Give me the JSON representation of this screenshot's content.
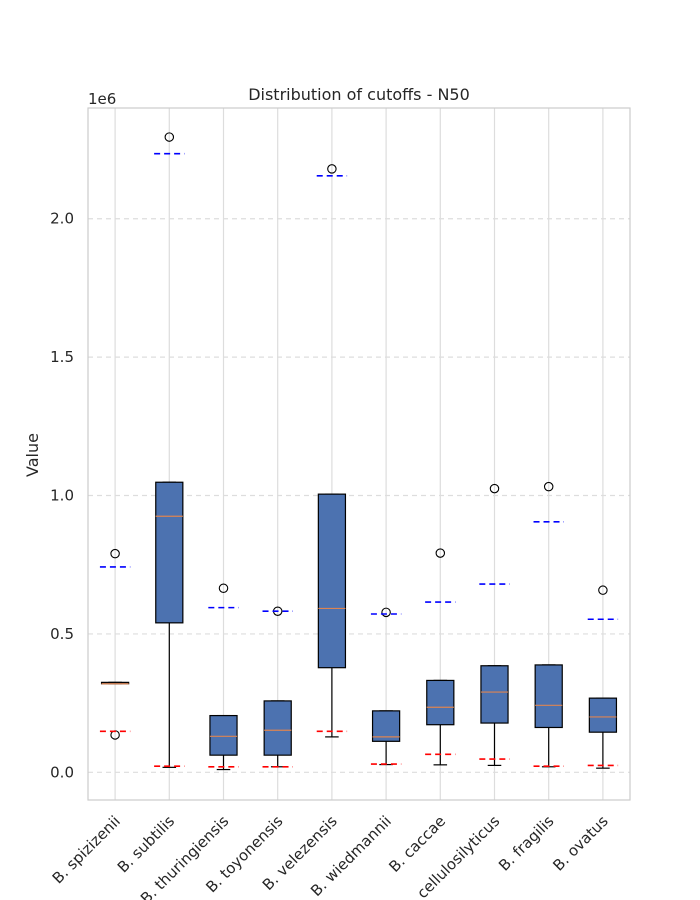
{
  "chart_data": {
    "type": "box",
    "title": "Distribution of cutoffs - N50",
    "xlabel": "",
    "ylabel": "Value",
    "y_offset_label": "1e6",
    "ylim": [
      -100000,
      2400000
    ],
    "yticks": [
      0,
      500000,
      1000000,
      1500000,
      2000000
    ],
    "ytick_labels": [
      "0.0",
      "0.5",
      "1.0",
      "1.5",
      "2.0"
    ],
    "grid": true,
    "categories": [
      "B. spizizenii",
      "B. subtilis",
      "B. thuringiensis",
      "B. toyonensis",
      "B. velezensis",
      "B. wiedmannii",
      "B. caccae",
      "B. cellulosilyticus",
      "B. fragilis",
      "B. ovatus"
    ],
    "boxes": [
      {
        "whislo": 320000,
        "q1": 320000,
        "med": 320000,
        "q3": 325000,
        "whishi": 325000,
        "fliers": [
          790000,
          135000
        ]
      },
      {
        "whislo": 18000,
        "q1": 540000,
        "med": 925000,
        "q3": 1048000,
        "whishi": 1048000,
        "fliers": [
          2295000
        ]
      },
      {
        "whislo": 10000,
        "q1": 62000,
        "med": 130000,
        "q3": 205000,
        "whishi": 205000,
        "fliers": [
          665000
        ]
      },
      {
        "whislo": 20000,
        "q1": 62000,
        "med": 152000,
        "q3": 258000,
        "whishi": 258000,
        "fliers": [
          582000
        ]
      },
      {
        "whislo": 128000,
        "q1": 378000,
        "med": 592000,
        "q3": 1005000,
        "whishi": 1005000,
        "fliers": [
          2180000
        ]
      },
      {
        "whislo": 28000,
        "q1": 112000,
        "med": 128000,
        "q3": 222000,
        "whishi": 222000,
        "fliers": [
          578000
        ]
      },
      {
        "whislo": 27000,
        "q1": 172000,
        "med": 235000,
        "q3": 332000,
        "whishi": 332000,
        "fliers": [
          792000
        ]
      },
      {
        "whislo": 25000,
        "q1": 178000,
        "med": 290000,
        "q3": 385000,
        "whishi": 385000,
        "fliers": [
          1025000
        ]
      },
      {
        "whislo": 20000,
        "q1": 162000,
        "med": 242000,
        "q3": 388000,
        "whishi": 388000,
        "fliers": [
          1032000
        ]
      },
      {
        "whislo": 15000,
        "q1": 145000,
        "med": 200000,
        "q3": 268000,
        "whishi": 268000,
        "fliers": [
          658000
        ]
      }
    ],
    "cutoffs": [
      {
        "upper": 742000,
        "lower": 148000
      },
      {
        "upper": 2235000,
        "lower": 22000
      },
      {
        "upper": 595000,
        "lower": 20000
      },
      {
        "upper": 582000,
        "lower": 20000
      },
      {
        "upper": 2155000,
        "lower": 148000
      },
      {
        "upper": 572000,
        "lower": 30000
      },
      {
        "upper": 615000,
        "lower": 65000
      },
      {
        "upper": 680000,
        "lower": 48000
      },
      {
        "upper": 905000,
        "lower": 22000
      },
      {
        "upper": 553000,
        "lower": 25000
      }
    ],
    "colors": {
      "box_fill": "#4c72b0",
      "box_edge": "#000000",
      "median": "#dd8452",
      "upper_cutoff": "#0000ff",
      "lower_cutoff": "#ff0000",
      "grid": "#dddddd",
      "frame": "#cccccc",
      "text": "#262626"
    }
  }
}
